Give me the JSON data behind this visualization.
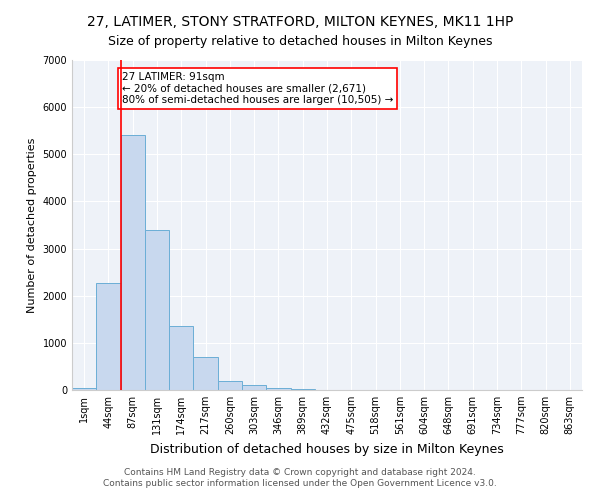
{
  "title": "27, LATIMER, STONY STRATFORD, MILTON KEYNES, MK11 1HP",
  "subtitle": "Size of property relative to detached houses in Milton Keynes",
  "xlabel": "Distribution of detached houses by size in Milton Keynes",
  "ylabel": "Number of detached properties",
  "footer_line1": "Contains HM Land Registry data © Crown copyright and database right 2024.",
  "footer_line2": "Contains public sector information licensed under the Open Government Licence v3.0.",
  "annotation_line1": "27 LATIMER: 91sqm",
  "annotation_line2": "← 20% of detached houses are smaller (2,671)",
  "annotation_line3": "80% of semi-detached houses are larger (10,505) →",
  "bar_color": "#c8d8ee",
  "bar_edge_color": "#6baed6",
  "categories": [
    "1sqm",
    "44sqm",
    "87sqm",
    "131sqm",
    "174sqm",
    "217sqm",
    "260sqm",
    "303sqm",
    "346sqm",
    "389sqm",
    "432sqm",
    "475sqm",
    "518sqm",
    "561sqm",
    "604sqm",
    "648sqm",
    "691sqm",
    "734sqm",
    "777sqm",
    "820sqm",
    "863sqm"
  ],
  "values": [
    50,
    2280,
    5400,
    3400,
    1350,
    700,
    200,
    100,
    50,
    15,
    5,
    2,
    1,
    0,
    0,
    0,
    0,
    0,
    0,
    0,
    0
  ],
  "ylim": [
    0,
    7000
  ],
  "yticks": [
    0,
    1000,
    2000,
    3000,
    4000,
    5000,
    6000,
    7000
  ],
  "red_line_index": 2,
  "background_color": "#eef2f8",
  "grid_color": "#ffffff",
  "title_fontsize": 10,
  "subtitle_fontsize": 9,
  "xlabel_fontsize": 9,
  "ylabel_fontsize": 8,
  "tick_fontsize": 7,
  "annotation_fontsize": 7.5,
  "footer_fontsize": 6.5
}
